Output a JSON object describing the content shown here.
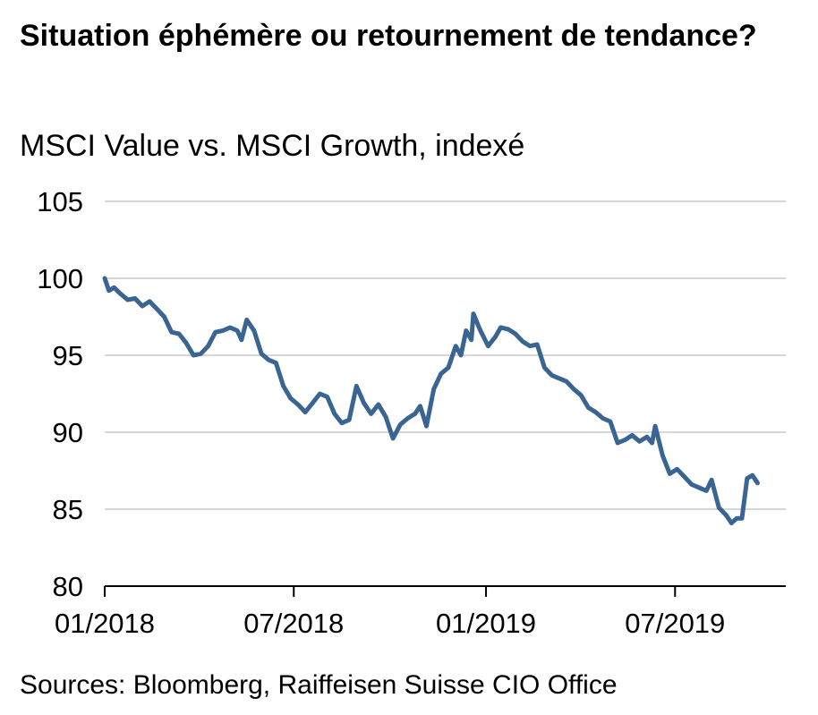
{
  "header": {
    "title": "Situation éphémère ou retournement de tendance?",
    "subtitle": "MSCI Value vs. MSCI Growth, indexé"
  },
  "footer": {
    "source": "Sources: Bloomberg, Raiffeisen Suisse CIO Office"
  },
  "colors": {
    "line": "#3a6592",
    "grid": "#c8c8c8",
    "axis": "#000000"
  },
  "chart_data": {
    "type": "line",
    "title": "Situation éphémère ou retournement de tendance?",
    "subtitle": "MSCI Value vs. MSCI Growth, indexé",
    "xlabel": "",
    "ylabel": "",
    "ylim": [
      80,
      105
    ],
    "yticks": [
      80,
      85,
      90,
      95,
      100,
      105
    ],
    "xlim": [
      "2018-01-01",
      "2019-10-15"
    ],
    "xticks": [
      {
        "date": "2018-01-01",
        "label": "01/2018"
      },
      {
        "date": "2018-07-01",
        "label": "07/2018"
      },
      {
        "date": "2019-01-01",
        "label": "01/2019"
      },
      {
        "date": "2019-07-01",
        "label": "07/2019"
      }
    ],
    "grid": true,
    "series": [
      {
        "values": [
          [
            "2018-01-01",
            100.0
          ],
          [
            "2018-01-05",
            99.2
          ],
          [
            "2018-01-10",
            99.4
          ],
          [
            "2018-01-16",
            99.0
          ],
          [
            "2018-01-23",
            98.6
          ],
          [
            "2018-01-30",
            98.7
          ],
          [
            "2018-02-06",
            98.2
          ],
          [
            "2018-02-13",
            98.5
          ],
          [
            "2018-02-20",
            98.0
          ],
          [
            "2018-02-27",
            97.5
          ],
          [
            "2018-03-06",
            96.5
          ],
          [
            "2018-03-13",
            96.4
          ],
          [
            "2018-03-20",
            95.8
          ],
          [
            "2018-03-27",
            95.0
          ],
          [
            "2018-04-03",
            95.1
          ],
          [
            "2018-04-10",
            95.6
          ],
          [
            "2018-04-17",
            96.5
          ],
          [
            "2018-04-24",
            96.6
          ],
          [
            "2018-05-01",
            96.8
          ],
          [
            "2018-05-08",
            96.6
          ],
          [
            "2018-05-12",
            96.0
          ],
          [
            "2018-05-17",
            97.3
          ],
          [
            "2018-05-24",
            96.6
          ],
          [
            "2018-05-31",
            95.1
          ],
          [
            "2018-06-07",
            94.7
          ],
          [
            "2018-06-14",
            94.5
          ],
          [
            "2018-06-21",
            93.0
          ],
          [
            "2018-06-28",
            92.2
          ],
          [
            "2018-07-05",
            91.8
          ],
          [
            "2018-07-12",
            91.3
          ],
          [
            "2018-07-19",
            91.9
          ],
          [
            "2018-07-26",
            92.5
          ],
          [
            "2018-08-02",
            92.3
          ],
          [
            "2018-08-09",
            91.2
          ],
          [
            "2018-08-16",
            90.6
          ],
          [
            "2018-08-23",
            90.8
          ],
          [
            "2018-08-30",
            93.0
          ],
          [
            "2018-09-06",
            91.9
          ],
          [
            "2018-09-13",
            91.2
          ],
          [
            "2018-09-20",
            91.8
          ],
          [
            "2018-09-27",
            91.0
          ],
          [
            "2018-10-04",
            89.6
          ],
          [
            "2018-10-11",
            90.5
          ],
          [
            "2018-10-18",
            90.9
          ],
          [
            "2018-10-25",
            91.2
          ],
          [
            "2018-10-30",
            91.7
          ],
          [
            "2018-11-05",
            90.4
          ],
          [
            "2018-11-12",
            92.8
          ],
          [
            "2018-11-19",
            93.8
          ],
          [
            "2018-11-26",
            94.2
          ],
          [
            "2018-12-03",
            95.6
          ],
          [
            "2018-12-08",
            95.0
          ],
          [
            "2018-12-13",
            96.6
          ],
          [
            "2018-12-18",
            96.0
          ],
          [
            "2018-12-20",
            97.7
          ],
          [
            "2018-12-26",
            96.7
          ],
          [
            "2019-01-03",
            95.6
          ],
          [
            "2019-01-10",
            96.2
          ],
          [
            "2019-01-15",
            96.8
          ],
          [
            "2019-01-22",
            96.7
          ],
          [
            "2019-01-29",
            96.4
          ],
          [
            "2019-02-05",
            95.9
          ],
          [
            "2019-02-12",
            95.6
          ],
          [
            "2019-02-19",
            95.7
          ],
          [
            "2019-02-26",
            94.2
          ],
          [
            "2019-03-05",
            93.7
          ],
          [
            "2019-03-12",
            93.5
          ],
          [
            "2019-03-19",
            93.3
          ],
          [
            "2019-03-26",
            92.8
          ],
          [
            "2019-04-02",
            92.4
          ],
          [
            "2019-04-09",
            91.6
          ],
          [
            "2019-04-16",
            91.3
          ],
          [
            "2019-04-23",
            90.9
          ],
          [
            "2019-04-30",
            90.7
          ],
          [
            "2019-05-07",
            89.3
          ],
          [
            "2019-05-14",
            89.5
          ],
          [
            "2019-05-21",
            89.8
          ],
          [
            "2019-05-28",
            89.4
          ],
          [
            "2019-06-04",
            89.7
          ],
          [
            "2019-06-09",
            89.3
          ],
          [
            "2019-06-12",
            90.4
          ],
          [
            "2019-06-19",
            88.5
          ],
          [
            "2019-06-26",
            87.3
          ],
          [
            "2019-07-03",
            87.6
          ],
          [
            "2019-07-10",
            87.1
          ],
          [
            "2019-07-17",
            86.6
          ],
          [
            "2019-07-24",
            86.4
          ],
          [
            "2019-07-31",
            86.2
          ],
          [
            "2019-08-05",
            86.9
          ],
          [
            "2019-08-12",
            85.1
          ],
          [
            "2019-08-19",
            84.6
          ],
          [
            "2019-08-24",
            84.1
          ],
          [
            "2019-08-29",
            84.4
          ],
          [
            "2019-09-03",
            84.4
          ],
          [
            "2019-09-08",
            87.0
          ],
          [
            "2019-09-13",
            87.2
          ],
          [
            "2019-09-18",
            86.7
          ]
        ]
      }
    ]
  }
}
